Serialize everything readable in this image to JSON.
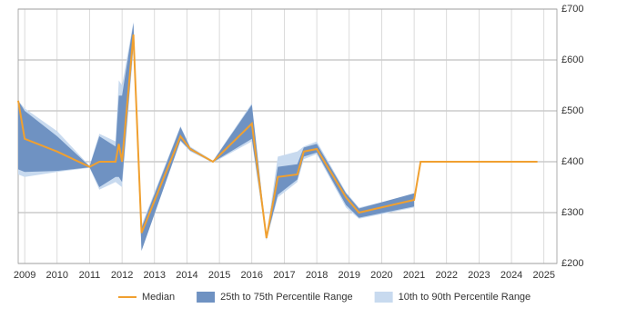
{
  "chart_data": {
    "type": "percentile-band-line",
    "x": [
      2008.8,
      2009.0,
      2010.0,
      2011.0,
      2011.3,
      2011.8,
      2011.9,
      2012.0,
      2012.35,
      2012.6,
      2013.8,
      2014.1,
      2014.8,
      2016.0,
      2016.45,
      2016.8,
      2017.4,
      2017.6,
      2018.0,
      2018.9,
      2019.3,
      2021.0,
      2021.2,
      2024.8
    ],
    "series": [
      {
        "name": "Median",
        "color": "#f0a030",
        "values": [
          520,
          445,
          420,
          390,
          400,
          400,
          435,
          400,
          650,
          260,
          450,
          425,
          400,
          475,
          250,
          370,
          375,
          420,
          425,
          330,
          300,
          325,
          400,
          400
        ]
      },
      {
        "name": "25th to 75th Percentile Range",
        "color": "#6f92c2",
        "lower": [
          385,
          380,
          382,
          389,
          350,
          370,
          370,
          360,
          630,
          225,
          442,
          422,
          399,
          445,
          248,
          335,
          365,
          410,
          418,
          315,
          290,
          312,
          null,
          null
        ],
        "upper": [
          520,
          500,
          450,
          391,
          450,
          430,
          530,
          530,
          672,
          270,
          468,
          428,
          401,
          512,
          252,
          390,
          395,
          428,
          435,
          338,
          308,
          338,
          null,
          null
        ]
      },
      {
        "name": "10th to 90th Percentile Range",
        "color": "#c8daef",
        "lower": [
          375,
          370,
          380,
          388,
          345,
          360,
          355,
          350,
          620,
          225,
          440,
          420,
          398,
          440,
          245,
          330,
          360,
          405,
          415,
          310,
          288,
          310,
          null,
          null
        ],
        "upper": [
          520,
          505,
          460,
          392,
          455,
          440,
          560,
          550,
          675,
          275,
          470,
          430,
          402,
          515,
          255,
          410,
          420,
          430,
          440,
          340,
          310,
          335,
          null,
          null
        ]
      }
    ],
    "xlim": [
      2008.8,
      2025.4
    ],
    "xticks": [
      2009,
      2010,
      2011,
      2012,
      2013,
      2014,
      2015,
      2016,
      2017,
      2018,
      2019,
      2020,
      2021,
      2022,
      2023,
      2024,
      2025
    ],
    "ylim": [
      200,
      700
    ],
    "yticks": [
      {
        "value": 200,
        "label": "£200"
      },
      {
        "value": 300,
        "label": "£300"
      },
      {
        "value": 400,
        "label": "£400"
      },
      {
        "value": 500,
        "label": "£500"
      },
      {
        "value": 600,
        "label": "£600"
      },
      {
        "value": 700,
        "label": "£700"
      }
    ],
    "grid": true
  }
}
